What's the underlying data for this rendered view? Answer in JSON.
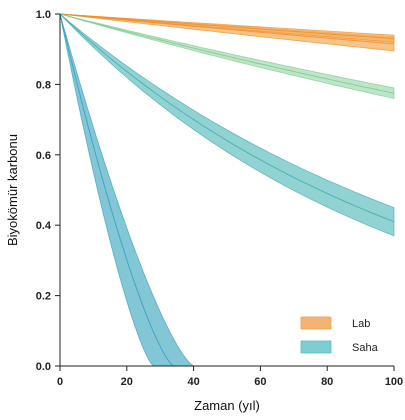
{
  "chart_data": {
    "type": "area",
    "xlabel": "Zaman (yıl)",
    "ylabel": "Biyokömür karbonu",
    "xlim": [
      0,
      100
    ],
    "ylim": [
      0,
      1.0
    ],
    "x_ticks": [
      "0",
      "20",
      "40",
      "60",
      "80",
      "100"
    ],
    "y_ticks": [
      "0.0",
      "0.2",
      "0.4",
      "0.6",
      "0.8",
      "1.0"
    ],
    "grid": false,
    "legend": {
      "position": "bottom-right",
      "entries": [
        {
          "label": "Lab",
          "color": "#f0a050"
        },
        {
          "label": "Saha",
          "color": "#5cc0c8"
        }
      ]
    },
    "series": [
      {
        "group": "Lab",
        "color": "#f08c28",
        "fill": "#f4b060",
        "x": [
          0,
          100
        ],
        "center": [
          1.0,
          0.915
        ],
        "lower": [
          1.0,
          0.895
        ],
        "upper": [
          1.0,
          0.935
        ]
      },
      {
        "group": "Lab",
        "color": "#f08c28",
        "fill": "#f4b060",
        "x": [
          0,
          100
        ],
        "center": [
          1.0,
          0.93
        ],
        "lower": [
          1.0,
          0.92
        ],
        "upper": [
          1.0,
          0.94
        ]
      },
      {
        "group": "Lab-Saha",
        "color": "#7cc890",
        "fill": "#a8dcb4",
        "x": [
          0,
          100
        ],
        "center": [
          1.0,
          0.775
        ],
        "lower": [
          1.0,
          0.76
        ],
        "upper": [
          1.0,
          0.79
        ]
      },
      {
        "group": "Saha",
        "color": "#3fa8b0",
        "fill": "#6cc4c4",
        "x": [
          0,
          100
        ],
        "center": [
          1.0,
          0.41
        ],
        "lower": [
          1.0,
          0.37
        ],
        "upper": [
          1.0,
          0.45
        ]
      },
      {
        "group": "Saha",
        "color": "#2e9cc0",
        "fill": "#5ab4c8",
        "x": [
          0,
          34
        ],
        "center": [
          1.0,
          0.0
        ],
        "lower_end_x": 28,
        "upper_end_x": 40
      }
    ]
  }
}
